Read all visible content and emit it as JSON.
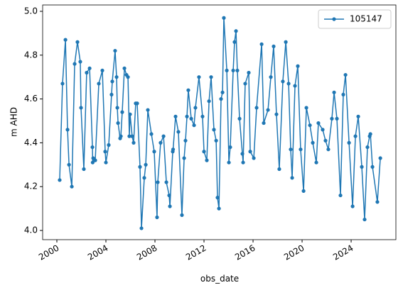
{
  "chart_data": {
    "type": "line",
    "xlabel": "obs_date",
    "ylabel": "m AHD",
    "x": [
      2000.23,
      2000.46,
      2000.7,
      2000.87,
      2000.99,
      2001.22,
      2001.45,
      2001.68,
      2001.91,
      2001.97,
      2002.2,
      2002.43,
      2002.67,
      2002.9,
      2002.92,
      2002.96,
      2003.13,
      2003.42,
      2003.71,
      2003.94,
      2004.0,
      2004.23,
      2004.46,
      2004.52,
      2004.75,
      2004.87,
      2004.93,
      2004.99,
      2005.16,
      2005.22,
      2005.33,
      2005.51,
      2005.68,
      2005.8,
      2005.91,
      2005.97,
      2006.14,
      2006.26,
      2006.43,
      2006.55,
      2006.78,
      2006.9,
      2007.13,
      2007.25,
      2007.42,
      2007.71,
      2007.94,
      2008.17,
      2008.23,
      2008.46,
      2008.7,
      2008.93,
      2009.16,
      2009.22,
      2009.45,
      2009.48,
      2009.68,
      2009.91,
      2010.2,
      2010.38,
      2010.49,
      2010.61,
      2010.72,
      2010.96,
      2011.19,
      2011.3,
      2011.59,
      2011.88,
      2012.0,
      2012.23,
      2012.41,
      2012.58,
      2012.81,
      2012.99,
      2013.1,
      2013.22,
      2013.39,
      2013.51,
      2013.62,
      2013.86,
      2014.03,
      2014.14,
      2014.38,
      2014.49,
      2014.61,
      2014.72,
      2014.9,
      2015.13,
      2015.19,
      2015.36,
      2015.65,
      2015.77,
      2016.06,
      2016.29,
      2016.7,
      2016.87,
      2017.22,
      2017.45,
      2017.68,
      2017.91,
      2018.14,
      2018.43,
      2018.67,
      2018.9,
      2019.07,
      2019.19,
      2019.42,
      2019.65,
      2019.88,
      2020.12,
      2020.35,
      2020.64,
      2020.87,
      2021.16,
      2021.33,
      2021.68,
      2021.91,
      2022.14,
      2022.43,
      2022.61,
      2022.84,
      2023.13,
      2023.36,
      2023.54,
      2023.83,
      2024.12,
      2024.35,
      2024.58,
      2024.87,
      2025.1,
      2025.33,
      2025.51,
      2025.57,
      2025.74,
      2026.14,
      2026.38
    ],
    "series": [
      {
        "name": "105147",
        "color": "#1f77b4",
        "values": [
          4.23,
          4.67,
          4.87,
          4.46,
          4.3,
          4.2,
          4.76,
          4.86,
          4.77,
          4.56,
          4.28,
          4.72,
          4.74,
          4.38,
          4.31,
          4.33,
          4.32,
          4.67,
          4.73,
          4.36,
          4.31,
          4.39,
          4.62,
          4.68,
          4.82,
          4.7,
          4.56,
          4.49,
          4.42,
          4.43,
          4.54,
          4.74,
          4.71,
          4.7,
          4.43,
          4.53,
          4.43,
          4.4,
          4.58,
          4.58,
          4.29,
          4.01,
          4.24,
          4.3,
          4.55,
          4.44,
          4.36,
          4.06,
          4.22,
          4.4,
          4.43,
          4.22,
          4.16,
          4.11,
          4.36,
          4.37,
          4.52,
          4.45,
          4.07,
          4.33,
          4.41,
          4.52,
          4.64,
          4.51,
          4.48,
          4.56,
          4.7,
          4.52,
          4.36,
          4.32,
          4.59,
          4.7,
          4.46,
          4.41,
          4.15,
          4.1,
          4.6,
          4.63,
          4.97,
          4.73,
          4.31,
          4.38,
          4.73,
          4.86,
          4.91,
          4.73,
          4.51,
          4.35,
          4.31,
          4.67,
          4.72,
          4.36,
          4.33,
          4.56,
          4.85,
          4.49,
          4.55,
          4.7,
          4.84,
          4.53,
          4.28,
          4.68,
          4.86,
          4.67,
          4.37,
          4.24,
          4.66,
          4.75,
          4.37,
          4.18,
          4.56,
          4.48,
          4.4,
          4.31,
          4.49,
          4.46,
          4.41,
          4.37,
          4.51,
          4.63,
          4.51,
          4.16,
          4.62,
          4.71,
          4.4,
          4.11,
          4.43,
          4.52,
          4.29,
          4.05,
          4.38,
          4.43,
          4.44,
          4.29,
          4.13,
          4.33
        ]
      }
    ],
    "xlim": [
      1998.84,
      2027.65
    ],
    "xticks": [
      2000,
      2004,
      2008,
      2012,
      2016,
      2020,
      2024
    ],
    "ylim": [
      3.958,
      5.029
    ],
    "yticks": [
      {
        "value": 4,
        "label": "4.0"
      },
      4.2,
      4.4,
      4.6,
      4.8,
      {
        "value": 5,
        "label": "5.0"
      }
    ],
    "grid": false,
    "legend": "upper right"
  }
}
